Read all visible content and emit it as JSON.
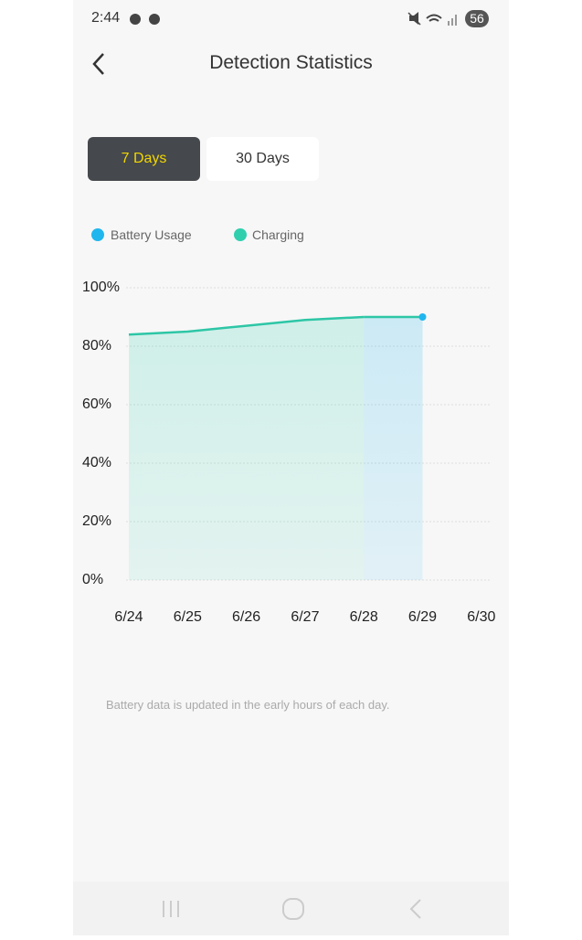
{
  "status_bar": {
    "time": "2:44",
    "battery": "56"
  },
  "header": {
    "title": "Detection Statistics"
  },
  "tabs": [
    "7 Days",
    "30 Days"
  ],
  "chart_data": {
    "type": "area",
    "categories": [
      "6/24",
      "6/25",
      "6/26",
      "6/27",
      "6/28",
      "6/29",
      "6/30"
    ],
    "series": [
      {
        "name": "Battery Usage",
        "color": "#1fb6ee",
        "values": [
          null,
          null,
          null,
          null,
          90,
          90,
          null
        ]
      },
      {
        "name": "Charging",
        "color": "#2fcfae",
        "values": [
          84,
          85,
          87,
          89,
          90,
          null,
          null
        ]
      }
    ],
    "line_color": "#2dc6a6",
    "ylim": [
      0,
      100
    ],
    "yticks": [
      {
        "value": 0,
        "label": "0%"
      },
      {
        "value": 20,
        "label": "20%"
      },
      {
        "value": 40,
        "label": "40%"
      },
      {
        "value": 60,
        "label": "60%"
      },
      {
        "value": 80,
        "label": "80%"
      },
      {
        "value": 100,
        "label": "100%"
      }
    ],
    "grid": true
  },
  "footer": {
    "note": "Battery data is updated in the early hours of each day."
  }
}
